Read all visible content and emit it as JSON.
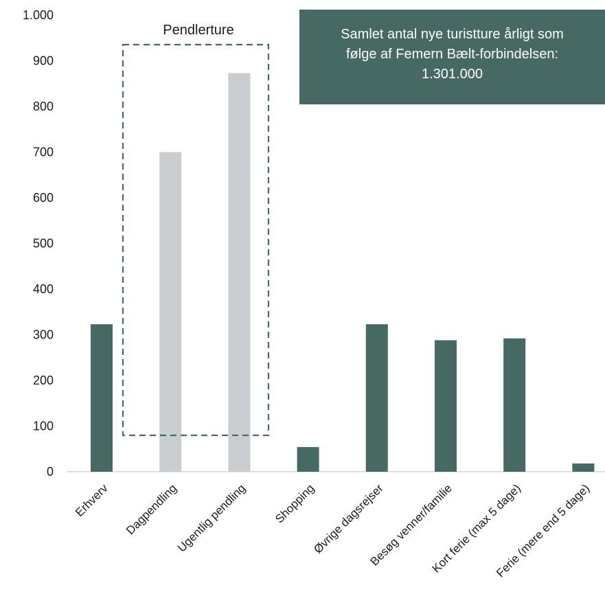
{
  "colors": {
    "highlight": "#466963",
    "muted": "#c9cdcf",
    "axis": "#bfbfbf",
    "callout_bg": "#466963",
    "dashed_box": "#466963"
  },
  "annotations": {
    "group_label": "Pendlerture",
    "group_members": [
      "Dagpendling",
      "Ugentlig pendling"
    ],
    "callout": {
      "line1": "Samlet antal nye turistture årligt som",
      "line2": "følge af Femern Bælt-forbindelsen:",
      "line3": "1.301.000"
    }
  },
  "chart_data": {
    "type": "bar",
    "title": "",
    "xlabel": "",
    "ylabel": "",
    "ylim": [
      0,
      1000
    ],
    "yticks": [
      0,
      100,
      200,
      300,
      400,
      500,
      600,
      700,
      800,
      900,
      1000
    ],
    "ytick_labels": [
      "0",
      "100",
      "200",
      "300",
      "400",
      "500",
      "600",
      "700",
      "800",
      "900",
      "1.000"
    ],
    "grid": false,
    "categories": [
      "Erhverv",
      "Dagpendling",
      "Ugentlig pendling",
      "Shopping",
      "Øvrige dagsrejser",
      "Besøg venner/familie",
      "Kort ferie (max 5 dage)",
      "Ferie (mere end 5 dage)"
    ],
    "values": [
      323,
      700,
      873,
      54,
      323,
      288,
      292,
      18
    ],
    "highlighted": [
      true,
      false,
      false,
      true,
      true,
      true,
      true,
      true
    ]
  }
}
